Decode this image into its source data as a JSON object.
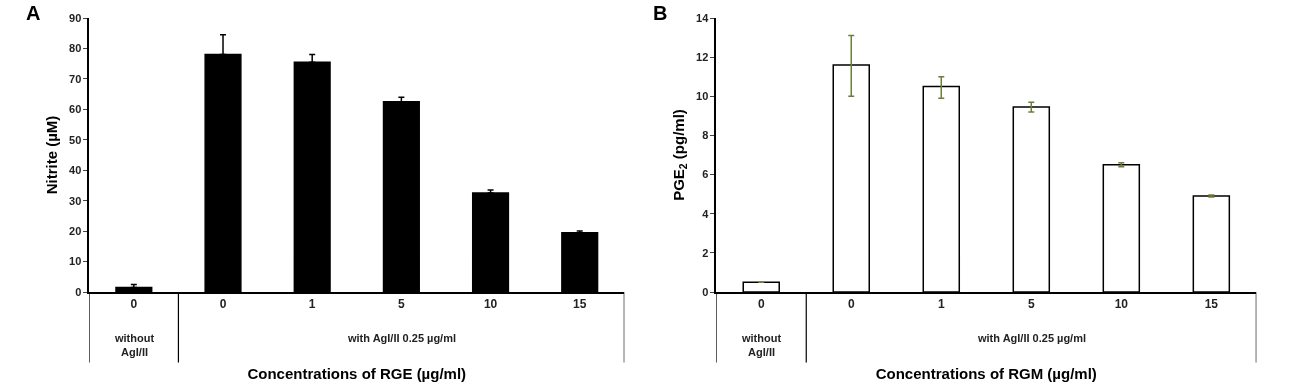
{
  "chart_data": [
    {
      "type": "bar",
      "title": "A",
      "categories": [
        "0",
        "0",
        "1",
        "5",
        "10",
        "15"
      ],
      "xlabel": "Concentrations of RGE (µg/ml)",
      "ylabel": "Nitrite (µM)",
      "series": [
        {
          "color": "#000000",
          "values": [
            1.5,
            78,
            75.5,
            62.5,
            32.5,
            19.5
          ],
          "errors": [
            [
              1.5,
              2.5
            ],
            [
              78,
              84.5
            ],
            [
              75.5,
              78
            ],
            [
              62.5,
              64
            ],
            [
              32.5,
              33.5
            ],
            [
              19.5,
              20
            ]
          ]
        }
      ],
      "ylim": [
        0,
        90
      ],
      "yticks": [
        0,
        10,
        20,
        30,
        40,
        50,
        60,
        70,
        80,
        90
      ],
      "annotations": [
        "without\nAgI/II",
        "with AgI/II 0.25 µg/ml"
      ]
    },
    {
      "type": "bar",
      "title": "B",
      "categories": [
        "0",
        "0",
        "1",
        "5",
        "10",
        "15"
      ],
      "xlabel": "Concentrations of RGM (µg/ml)",
      "ylabel": "PGE$_{2}$ (pg/ml)",
      "series": [
        {
          "color": "#ffffff",
          "values": [
            0.5,
            11.6,
            10.5,
            9.45,
            6.5,
            4.9
          ],
          "errors": [
            null,
            [
              10,
              13.1
            ],
            [
              9.9,
              11
            ],
            [
              9.2,
              9.7
            ],
            [
              6.4,
              6.6
            ],
            [
              4.85,
              4.95
            ]
          ]
        }
      ],
      "ylim": [
        0,
        14
      ],
      "yticks": [
        0,
        2,
        4,
        6,
        8,
        10,
        12,
        14
      ],
      "annotations": [
        "without\nAgI/II",
        "with AgI/II 0.25 µg/ml"
      ]
    }
  ]
}
